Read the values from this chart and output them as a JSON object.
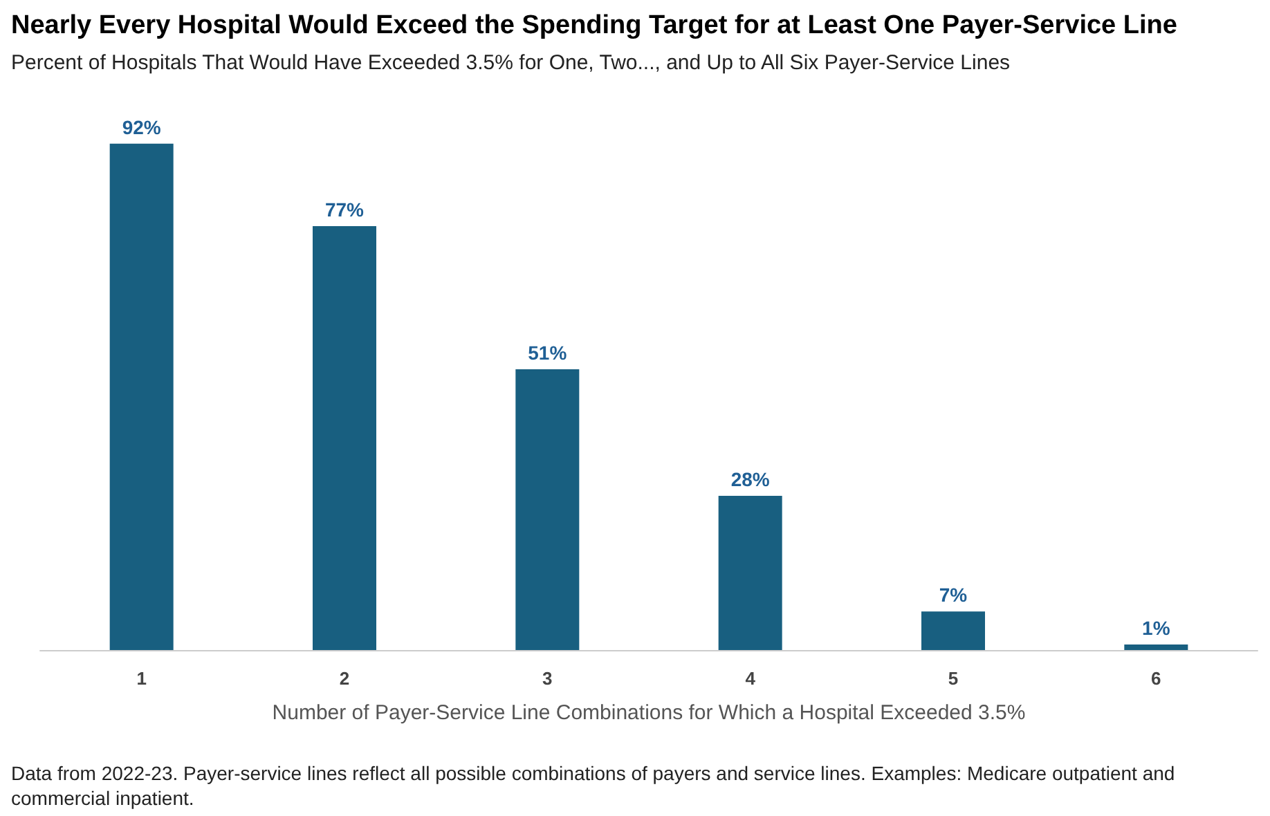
{
  "chart_data": {
    "type": "bar",
    "title": "Nearly Every Hospital Would Exceed the Spending Target for at Least One Payer-Service Line",
    "subtitle": "Percent of Hospitals That Would Have Exceeded 3.5% for One, Two..., and Up to All Six Payer-Service Lines",
    "xlabel": "Number of Payer-Service Line Combinations for Which a Hospital Exceeded 3.5%",
    "categories": [
      "1",
      "2",
      "3",
      "4",
      "5",
      "6"
    ],
    "values": [
      92,
      77,
      51,
      28,
      7,
      1
    ],
    "value_labels": [
      "92%",
      "77%",
      "51%",
      "28%",
      "7%",
      "1%"
    ],
    "color": "#185f80",
    "tick_labels": "x",
    "annotations": [
      "Data from 2022-23. Payer-service lines reflect all possible combinations of payers and service lines. Examples: Medicare outpatient and commercial inpatient."
    ]
  }
}
